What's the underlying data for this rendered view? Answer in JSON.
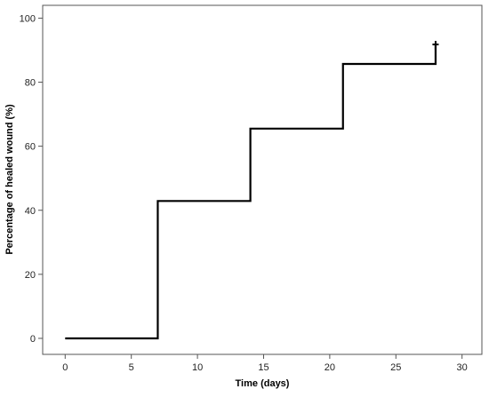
{
  "chart_data": {
    "type": "line",
    "step": "post",
    "xlabel": "Time (days)",
    "ylabel": "Percentage of healed wound (%)",
    "xlim": [
      -1.7,
      31.5
    ],
    "ylim": [
      -5,
      104
    ],
    "xticks": [
      0,
      5,
      10,
      15,
      20,
      25,
      30
    ],
    "yticks": [
      0,
      20,
      40,
      60,
      80,
      100
    ],
    "grid": false,
    "series": [
      {
        "x": [
          0,
          7,
          14,
          21,
          28,
          28
        ],
        "y": [
          0,
          42.9,
          65.5,
          85.7,
          85.7,
          91.5
        ],
        "color": "#000000"
      }
    ],
    "censor_marks": [
      {
        "x": 28,
        "y": 91.5
      }
    ]
  }
}
